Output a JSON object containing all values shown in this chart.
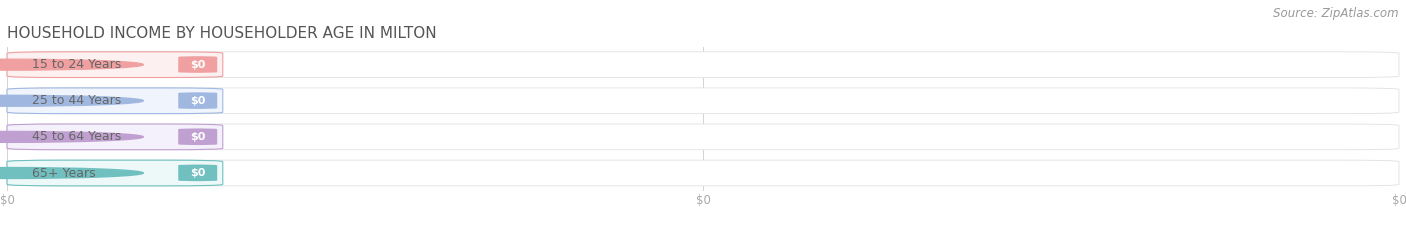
{
  "title": "HOUSEHOLD INCOME BY HOUSEHOLDER AGE IN MILTON",
  "source": "Source: ZipAtlas.com",
  "categories": [
    "15 to 24 Years",
    "25 to 44 Years",
    "45 to 64 Years",
    "65+ Years"
  ],
  "values": [
    0,
    0,
    0,
    0
  ],
  "bar_colors": [
    "#f0a0a0",
    "#a0b8e0",
    "#c0a0d0",
    "#70c0c0"
  ],
  "label_bg_colors": [
    "#fdf0f0",
    "#f0f4fc",
    "#f4f0fc",
    "#edf8f8"
  ],
  "background_color": "#ffffff",
  "row_bg_color": "#f2f2f2",
  "row_border_color": "#e0e0e0",
  "pill_border_colors": [
    "#f0a0a0",
    "#a0b8e0",
    "#c0a0d0",
    "#70c0c0"
  ],
  "tick_color": "#aaaaaa",
  "title_color": "#555555",
  "source_color": "#999999",
  "label_color": "#666666",
  "title_fontsize": 11,
  "source_fontsize": 8.5,
  "label_fontsize": 9,
  "value_fontsize": 8,
  "tick_fontsize": 8.5,
  "xticks": [
    0.0,
    0.5,
    1.0
  ],
  "xtick_labels": [
    "$0",
    "$0",
    "$0"
  ]
}
